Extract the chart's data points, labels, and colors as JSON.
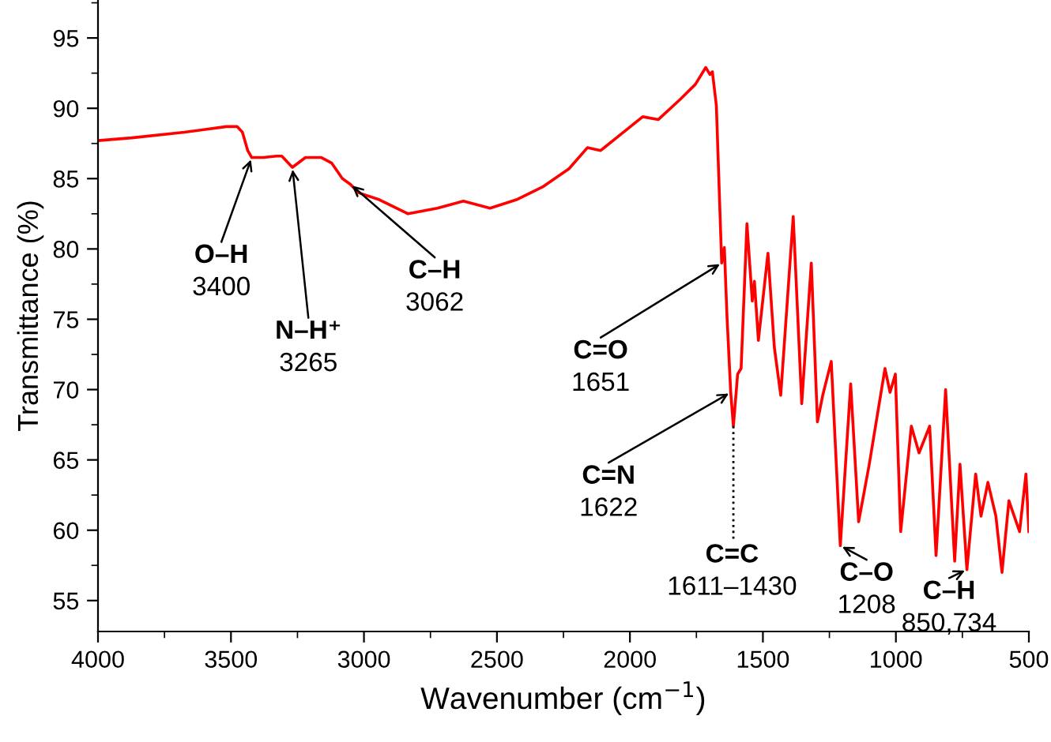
{
  "chart_data": {
    "type": "line",
    "xlabel": "Wavenumber (cm$^{−1}$)",
    "ylabel": "Transmittance (%)",
    "xlim": [
      4000,
      500
    ],
    "ylim": [
      52.8,
      97.7
    ],
    "xticks": [
      4000,
      3500,
      3000,
      2500,
      2000,
      1500,
      1000,
      500
    ],
    "yticks": [
      55,
      60,
      65,
      70,
      75,
      80,
      85,
      90,
      95
    ],
    "grid": false,
    "legend": false,
    "series": [
      {
        "color": "#ff0000",
        "x": [
          4000,
          3873,
          3675,
          3517,
          3477,
          3457,
          3437,
          3422,
          3378,
          3329,
          3309,
          3269,
          3220,
          3160,
          3121,
          3081,
          3051,
          3021,
          2942,
          2834,
          2724,
          2626,
          2526,
          2427,
          2329,
          2229,
          2160,
          2110,
          2011,
          1952,
          1893,
          1813,
          1754,
          1715,
          1699,
          1690,
          1675,
          1665,
          1655,
          1645,
          1635,
          1621,
          1611,
          1595,
          1582,
          1560,
          1540,
          1532,
          1517,
          1481,
          1457,
          1433,
          1386,
          1354,
          1318,
          1295,
          1275,
          1243,
          1209,
          1170,
          1140,
          1100,
          1041,
          1022,
          1002,
          982,
          942,
          913,
          873,
          849,
          813,
          779,
          759,
          733,
          700,
          680,
          654,
          624,
          601,
          575,
          535,
          511,
          500
        ],
        "values": [
          87.7,
          87.9,
          88.3,
          88.7,
          88.7,
          88.3,
          87.0,
          86.5,
          86.5,
          86.6,
          86.6,
          85.8,
          86.5,
          86.5,
          86.1,
          85.0,
          84.6,
          84.0,
          83.5,
          82.5,
          82.9,
          83.4,
          82.9,
          83.5,
          84.4,
          85.7,
          87.2,
          87.0,
          88.5,
          89.4,
          89.2,
          90.6,
          91.7,
          92.9,
          92.4,
          92.6,
          90.2,
          84.6,
          79.0,
          80.1,
          75.2,
          69.8,
          67.4,
          71.1,
          71.5,
          81.8,
          76.3,
          77.7,
          73.5,
          79.7,
          73.0,
          69.6,
          82.3,
          69.0,
          79.0,
          67.7,
          69.6,
          72.0,
          58.9,
          70.4,
          60.6,
          64.7,
          71.5,
          69.8,
          71.1,
          59.9,
          67.4,
          65.5,
          67.4,
          58.2,
          70.0,
          57.8,
          64.7,
          57.2,
          64.0,
          61.0,
          63.4,
          61.0,
          57.0,
          62.1,
          59.9,
          64.0,
          59.9
        ]
      }
    ],
    "annotations": [
      {
        "text": "O–H\n3400",
        "x": 3422,
        "y": 86.5
      },
      {
        "text": "N–H⁺\n3265",
        "x": 3269,
        "y": 85.8
      },
      {
        "text": "C–H\n3062",
        "x": 3051,
        "y": 84.6
      },
      {
        "text": "C=O\n1651",
        "x": 1655,
        "y": 79.0
      },
      {
        "text": "C=N\n1622",
        "x": 1621,
        "y": 69.8
      },
      {
        "text": "C=C\n1611–1430",
        "x": 1611,
        "y": 67.4
      },
      {
        "text": "C–O\n1208",
        "x": 1209,
        "y": 58.9
      },
      {
        "text": "C–H\n850,734",
        "x": 733,
        "y": 57.2
      }
    ]
  }
}
